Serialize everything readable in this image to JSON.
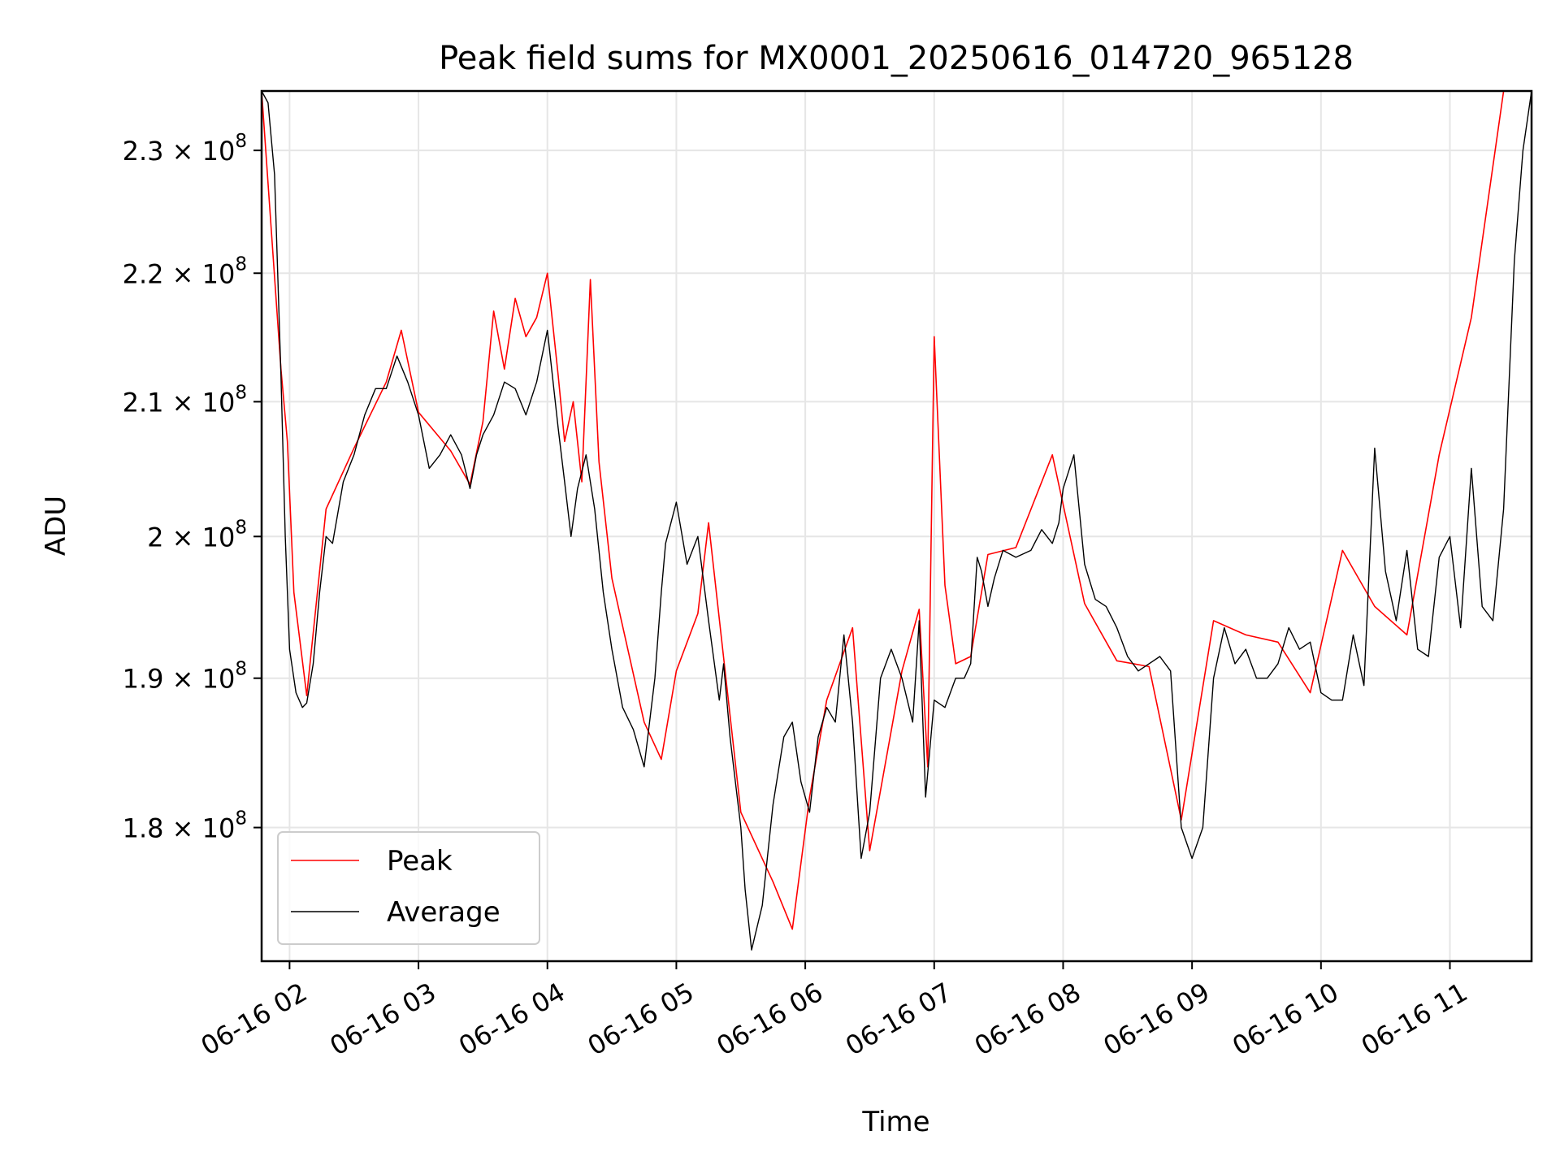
{
  "chart_data": {
    "type": "line",
    "title": "Peak field sums for MX0001_20250616_014720_965128",
    "xlabel": "Time",
    "ylabel": "ADU",
    "y_scale": "log",
    "grid": true,
    "legend_position": "lower-left",
    "x_range": [
      "2025-06-16 01:47:00",
      "2025-06-16 11:38:00"
    ],
    "y_range": [
      171500000,
      235000000
    ],
    "x_ticks": [
      {
        "t": "2025-06-16 02:00",
        "label": "06-16 02"
      },
      {
        "t": "2025-06-16 03:00",
        "label": "06-16 03"
      },
      {
        "t": "2025-06-16 04:00",
        "label": "06-16 04"
      },
      {
        "t": "2025-06-16 05:00",
        "label": "06-16 05"
      },
      {
        "t": "2025-06-16 06:00",
        "label": "06-16 06"
      },
      {
        "t": "2025-06-16 07:00",
        "label": "06-16 07"
      },
      {
        "t": "2025-06-16 08:00",
        "label": "06-16 08"
      },
      {
        "t": "2025-06-16 09:00",
        "label": "06-16 09"
      },
      {
        "t": "2025-06-16 10:00",
        "label": "06-16 10"
      },
      {
        "t": "2025-06-16 11:00",
        "label": "06-16 11"
      }
    ],
    "y_ticks": [
      {
        "value": 180000000,
        "mantissa": "1.8"
      },
      {
        "value": 190000000,
        "mantissa": "1.9"
      },
      {
        "value": 200000000,
        "mantissa": "2"
      },
      {
        "value": 210000000,
        "mantissa": "2.1"
      },
      {
        "value": 220000000,
        "mantissa": "2.2"
      },
      {
        "value": 230000000,
        "mantissa": "2.3"
      }
    ],
    "y_tick_format": {
      "times": "×",
      "base": "10",
      "exponent": "8"
    },
    "series": [
      {
        "name": "Average",
        "color": "#000000",
        "x": [
          "2025-06-16 01:47",
          "2025-06-16 01:50",
          "2025-06-16 01:53",
          "2025-06-16 01:56",
          "2025-06-16 01:58",
          "2025-06-16 02:00",
          "2025-06-16 02:03",
          "2025-06-16 02:06",
          "2025-06-16 02:08",
          "2025-06-16 02:11",
          "2025-06-16 02:14",
          "2025-06-16 02:17",
          "2025-06-16 02:20",
          "2025-06-16 02:25",
          "2025-06-16 02:30",
          "2025-06-16 02:35",
          "2025-06-16 02:40",
          "2025-06-16 02:45",
          "2025-06-16 02:50",
          "2025-06-16 02:55",
          "2025-06-16 03:00",
          "2025-06-16 03:05",
          "2025-06-16 03:10",
          "2025-06-16 03:15",
          "2025-06-16 03:20",
          "2025-06-16 03:24",
          "2025-06-16 03:27",
          "2025-06-16 03:30",
          "2025-06-16 03:35",
          "2025-06-16 03:40",
          "2025-06-16 03:45",
          "2025-06-16 03:50",
          "2025-06-16 03:55",
          "2025-06-16 04:00",
          "2025-06-16 04:05",
          "2025-06-16 04:08",
          "2025-06-16 04:11",
          "2025-06-16 04:14",
          "2025-06-16 04:18",
          "2025-06-16 04:22",
          "2025-06-16 04:26",
          "2025-06-16 04:30",
          "2025-06-16 04:35",
          "2025-06-16 04:40",
          "2025-06-16 04:45",
          "2025-06-16 04:50",
          "2025-06-16 04:53",
          "2025-06-16 04:55",
          "2025-06-16 05:00",
          "2025-06-16 05:05",
          "2025-06-16 05:10",
          "2025-06-16 05:15",
          "2025-06-16 05:20",
          "2025-06-16 05:22",
          "2025-06-16 05:25",
          "2025-06-16 05:30",
          "2025-06-16 05:32",
          "2025-06-16 05:35",
          "2025-06-16 05:40",
          "2025-06-16 05:45",
          "2025-06-16 05:50",
          "2025-06-16 05:54",
          "2025-06-16 05:58",
          "2025-06-16 06:02",
          "2025-06-16 06:06",
          "2025-06-16 06:10",
          "2025-06-16 06:14",
          "2025-06-16 06:18",
          "2025-06-16 06:22",
          "2025-06-16 06:26",
          "2025-06-16 06:30",
          "2025-06-16 06:35",
          "2025-06-16 06:40",
          "2025-06-16 06:45",
          "2025-06-16 06:50",
          "2025-06-16 06:53",
          "2025-06-16 06:56",
          "2025-06-16 07:00",
          "2025-06-16 07:05",
          "2025-06-16 07:10",
          "2025-06-16 07:14",
          "2025-06-16 07:17",
          "2025-06-16 07:20",
          "2025-06-16 07:22",
          "2025-06-16 07:25",
          "2025-06-16 07:28",
          "2025-06-16 07:32",
          "2025-06-16 07:38",
          "2025-06-16 07:45",
          "2025-06-16 07:50",
          "2025-06-16 07:55",
          "2025-06-16 07:58",
          "2025-06-16 08:00",
          "2025-06-16 08:05",
          "2025-06-16 08:10",
          "2025-06-16 08:15",
          "2025-06-16 08:20",
          "2025-06-16 08:25",
          "2025-06-16 08:30",
          "2025-06-16 08:35",
          "2025-06-16 08:40",
          "2025-06-16 08:45",
          "2025-06-16 08:50",
          "2025-06-16 08:55",
          "2025-06-16 09:00",
          "2025-06-16 09:05",
          "2025-06-16 09:10",
          "2025-06-16 09:15",
          "2025-06-16 09:20",
          "2025-06-16 09:25",
          "2025-06-16 09:30",
          "2025-06-16 09:35",
          "2025-06-16 09:40",
          "2025-06-16 09:45",
          "2025-06-16 09:50",
          "2025-06-16 09:55",
          "2025-06-16 10:00",
          "2025-06-16 10:05",
          "2025-06-16 10:10",
          "2025-06-16 10:15",
          "2025-06-16 10:20",
          "2025-06-16 10:25",
          "2025-06-16 10:30",
          "2025-06-16 10:35",
          "2025-06-16 10:40",
          "2025-06-16 10:45",
          "2025-06-16 10:50",
          "2025-06-16 10:55",
          "2025-06-16 11:00",
          "2025-06-16 11:05",
          "2025-06-16 11:10",
          "2025-06-16 11:15",
          "2025-06-16 11:20",
          "2025-06-16 11:25",
          "2025-06-16 11:30",
          "2025-06-16 11:34",
          "2025-06-16 11:38"
        ],
        "y": [
          235000000,
          234000000,
          228000000,
          212000000,
          200000000,
          192000000,
          189000000,
          188000000,
          188300000,
          191000000,
          196000000,
          200000000,
          199500000,
          204000000,
          206000000,
          209000000,
          211000000,
          211000000,
          213500000,
          211500000,
          209000000,
          205000000,
          206000000,
          207500000,
          206000000,
          203500000,
          206000000,
          207500000,
          209000000,
          211500000,
          211000000,
          209000000,
          211500000,
          215500000,
          208000000,
          204000000,
          200000000,
          203500000,
          206000000,
          202000000,
          196000000,
          192000000,
          188000000,
          186500000,
          184000000,
          190000000,
          196000000,
          199500000,
          202500000,
          198000000,
          200000000,
          194000000,
          188500000,
          191000000,
          186000000,
          180000000,
          176000000,
          172200000,
          175000000,
          181500000,
          186000000,
          187000000,
          183000000,
          181000000,
          186000000,
          188000000,
          187000000,
          193000000,
          187000000,
          178000000,
          181000000,
          190000000,
          192000000,
          190000000,
          187000000,
          194000000,
          182000000,
          188500000,
          188000000,
          190000000,
          190000000,
          191000000,
          198500000,
          197500000,
          195000000,
          197000000,
          199000000,
          198500000,
          199000000,
          200500000,
          199500000,
          201000000,
          203500000,
          206000000,
          198000000,
          195500000,
          195000000,
          193500000,
          191500000,
          190500000,
          191000000,
          191500000,
          190500000,
          180000000,
          178000000,
          180000000,
          190000000,
          193500000,
          191000000,
          192000000,
          190000000,
          190000000,
          191000000,
          193500000,
          192000000,
          192500000,
          189000000,
          188500000,
          188500000,
          193000000,
          189500000,
          206500000,
          197500000,
          194000000,
          199000000,
          192000000,
          191500000,
          198500000,
          200000000,
          193500000,
          205000000,
          195000000,
          194000000,
          202000000,
          221000000,
          230000000,
          235000000
        ],
        "line_width": "thin"
      },
      {
        "name": "Peak",
        "color": "#ff0000",
        "x": [
          "2025-06-16 01:47",
          "2025-06-16 01:56",
          "2025-06-16 01:59",
          "2025-06-16 02:02",
          "2025-06-16 02:08",
          "2025-06-16 02:17",
          "2025-06-16 02:30",
          "2025-06-16 02:45",
          "2025-06-16 02:52",
          "2025-06-16 03:00",
          "2025-06-16 03:15",
          "2025-06-16 03:24",
          "2025-06-16 03:30",
          "2025-06-16 03:35",
          "2025-06-16 03:40",
          "2025-06-16 03:45",
          "2025-06-16 03:50",
          "2025-06-16 03:55",
          "2025-06-16 04:00",
          "2025-06-16 04:05",
          "2025-06-16 04:08",
          "2025-06-16 04:12",
          "2025-06-16 04:16",
          "2025-06-16 04:20",
          "2025-06-16 04:24",
          "2025-06-16 04:30",
          "2025-06-16 04:45",
          "2025-06-16 04:53",
          "2025-06-16 05:00",
          "2025-06-16 05:10",
          "2025-06-16 05:15",
          "2025-06-16 05:30",
          "2025-06-16 05:45",
          "2025-06-16 05:54",
          "2025-06-16 06:02",
          "2025-06-16 06:10",
          "2025-06-16 06:22",
          "2025-06-16 06:30",
          "2025-06-16 06:45",
          "2025-06-16 06:53",
          "2025-06-16 06:57",
          "2025-06-16 07:00",
          "2025-06-16 07:05",
          "2025-06-16 07:10",
          "2025-06-16 07:17",
          "2025-06-16 07:25",
          "2025-06-16 07:38",
          "2025-06-16 07:55",
          "2025-06-16 08:10",
          "2025-06-16 08:25",
          "2025-06-16 08:40",
          "2025-06-16 08:55",
          "2025-06-16 09:10",
          "2025-06-16 09:25",
          "2025-06-16 09:40",
          "2025-06-16 09:55",
          "2025-06-16 10:10",
          "2025-06-16 10:25",
          "2025-06-16 10:40",
          "2025-06-16 10:55",
          "2025-06-16 11:10",
          "2025-06-16 11:25",
          "2025-06-16 11:34",
          "2025-06-16 11:38"
        ],
        "y": [
          235000000,
          212500000,
          207000000,
          196000000,
          188800000,
          202000000,
          206500000,
          211500000,
          215500000,
          209200000,
          206300000,
          203800000,
          208500000,
          217000000,
          212500000,
          218000000,
          215000000,
          216500000,
          220000000,
          212000000,
          207000000,
          210000000,
          204000000,
          219500000,
          205500000,
          197000000,
          187000000,
          184500000,
          190500000,
          194500000,
          201000000,
          181000000,
          176500000,
          173500000,
          182000000,
          188500000,
          193500000,
          178500000,
          190500000,
          194800000,
          184000000,
          215000000,
          196500000,
          191000000,
          191500000,
          198700000,
          199200000,
          206000000,
          195200000,
          191200000,
          190800000,
          180500000,
          194000000,
          193000000,
          192500000,
          189000000,
          199000000,
          195000000,
          193000000,
          206000000,
          216500000,
          235000000,
          235000000,
          235000000
        ],
        "line_width": "thin"
      }
    ]
  }
}
